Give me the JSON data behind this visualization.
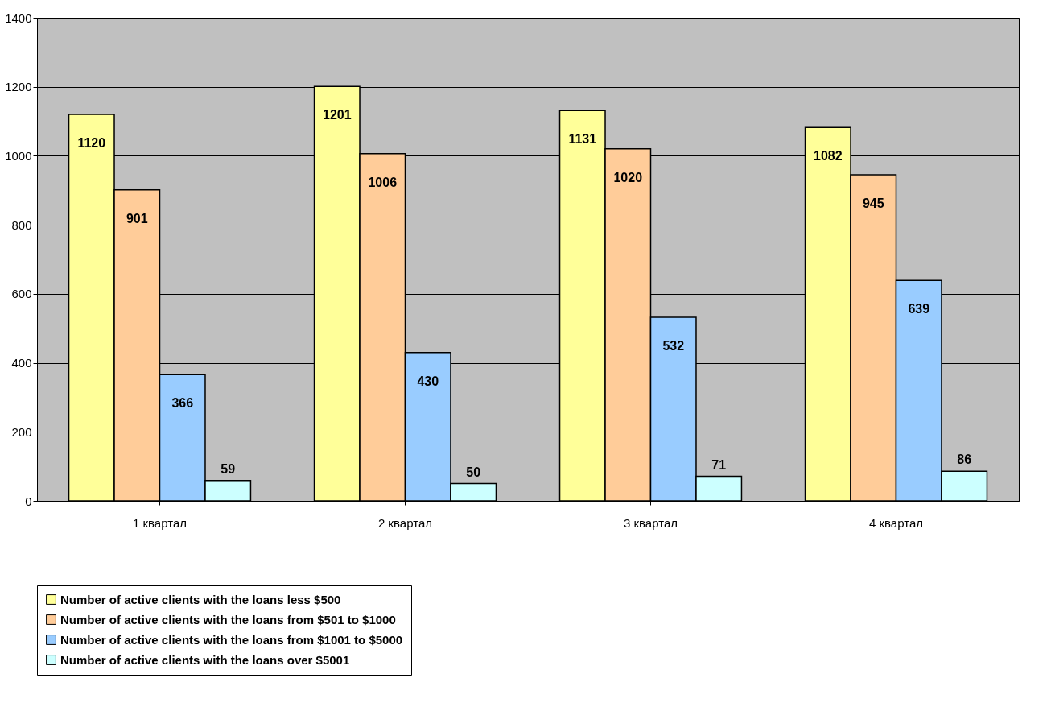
{
  "chart_data": {
    "type": "bar",
    "categories": [
      "1 квартал",
      "2 квартал",
      "3 квартал",
      "4 квартал"
    ],
    "series": [
      {
        "name": "Number of active clients with the loans less $500",
        "color": "#ffff99",
        "values": [
          1120,
          1201,
          1131,
          1082
        ]
      },
      {
        "name": "Number of active clients with the loans from $501 to $1000",
        "color": "#ffcc99",
        "values": [
          901,
          1006,
          1020,
          945
        ]
      },
      {
        "name": "Number of active clients with the loans from $1001 to $5000",
        "color": "#99ccff",
        "values": [
          366,
          430,
          532,
          639
        ]
      },
      {
        "name": "Number of active clients with the loans over $5001",
        "color": "#ccffff",
        "values": [
          59,
          50,
          71,
          86
        ]
      }
    ],
    "ylim": [
      0,
      1400
    ],
    "yticks": [
      0,
      200,
      400,
      600,
      800,
      1000,
      1200,
      1400
    ],
    "grid": "y",
    "legend": "bottom",
    "data_labels": true
  }
}
